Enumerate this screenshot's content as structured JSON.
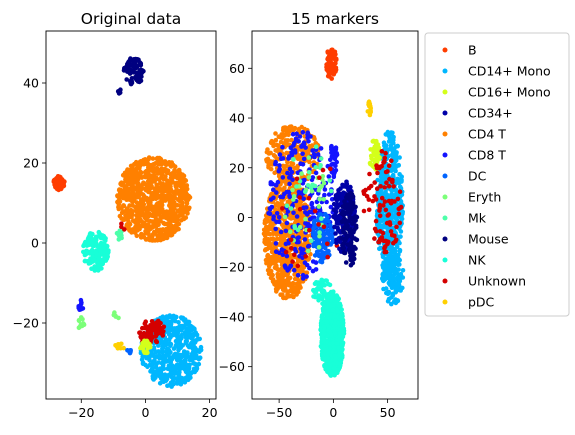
{
  "chart_data": [
    {
      "type": "scatter",
      "title": "Original data",
      "xlabel": "",
      "ylabel": "",
      "xlim": [
        -31,
        22
      ],
      "ylim": [
        -39,
        53
      ],
      "xticks": [
        -20,
        0,
        20
      ],
      "yticks": [
        -20,
        0,
        20,
        40
      ],
      "grid": false,
      "clusters": [
        {
          "category": "Mouse",
          "cx": -3.5,
          "cy": 43,
          "rx": 3.2,
          "ry": 3.5,
          "n": 90
        },
        {
          "category": "Mouse",
          "cx": -8,
          "cy": 38,
          "rx": 0.6,
          "ry": 0.8,
          "n": 6
        },
        {
          "category": "B",
          "cx": -27,
          "cy": 15,
          "rx": 1.8,
          "ry": 1.8,
          "n": 50
        },
        {
          "category": "CD4 T",
          "cx": 2.5,
          "cy": 11,
          "rx": 11.5,
          "ry": 10.5,
          "n": 900
        },
        {
          "category": "NK",
          "cx": -15.5,
          "cy": -2,
          "rx": 4,
          "ry": 5,
          "n": 150
        },
        {
          "category": "Mk",
          "cx": -8,
          "cy": 2,
          "rx": 1,
          "ry": 1.5,
          "n": 8
        },
        {
          "category": "Unknown",
          "cx": -7,
          "cy": 4,
          "rx": 1,
          "ry": 1,
          "n": 3
        },
        {
          "category": "CD14+ Mono",
          "cx": 8,
          "cy": -27,
          "rx": 9.5,
          "ry": 9,
          "n": 500
        },
        {
          "category": "Unknown",
          "cx": 2,
          "cy": -22,
          "rx": 4,
          "ry": 3,
          "n": 60
        },
        {
          "category": "Unknown",
          "cx": 0,
          "cy": -24,
          "rx": 1.5,
          "ry": 1,
          "n": 15
        },
        {
          "category": "CD16+ Mono",
          "cx": 0,
          "cy": -26,
          "rx": 1.6,
          "ry": 1.6,
          "n": 25
        },
        {
          "category": "CD8 T",
          "cx": -20,
          "cy": -15.5,
          "rx": 1,
          "ry": 1.5,
          "n": 12
        },
        {
          "category": "Eryth",
          "cx": -20,
          "cy": -20,
          "rx": 1,
          "ry": 2,
          "n": 12
        },
        {
          "category": "Eryth",
          "cx": -9,
          "cy": -18,
          "rx": 1,
          "ry": 1,
          "n": 5
        },
        {
          "category": "pDC",
          "cx": -8,
          "cy": -26,
          "rx": 1.5,
          "ry": 1,
          "n": 8
        },
        {
          "category": "DC",
          "cx": -5,
          "cy": -27,
          "rx": 1,
          "ry": 1,
          "n": 6
        }
      ]
    },
    {
      "type": "scatter",
      "title": "15 markers",
      "xlabel": "",
      "ylabel": "",
      "xlim": [
        -75,
        78
      ],
      "ylim": [
        -73,
        75
      ],
      "xticks": [
        -50,
        0,
        50
      ],
      "yticks": [
        -60,
        -40,
        -20,
        0,
        20,
        40,
        60
      ],
      "grid": false,
      "clusters": [
        {
          "category": "B",
          "cx": -2,
          "cy": 62,
          "rx": 5,
          "ry": 6.5,
          "n": 80
        },
        {
          "category": "CD4 T",
          "cx": -37,
          "cy": 25,
          "rx": 25,
          "ry": 12,
          "n": 250
        },
        {
          "category": "CD4 T",
          "cx": -42,
          "cy": -8,
          "rx": 22,
          "ry": 25,
          "n": 700
        },
        {
          "category": "CD8 T",
          "cx": -30,
          "cy": 5,
          "rx": 30,
          "ry": 30,
          "n": 250
        },
        {
          "category": "CD8 T",
          "cx": 0,
          "cy": 22,
          "rx": 4,
          "ry": 8,
          "n": 30
        },
        {
          "category": "DC",
          "cx": -10,
          "cy": -8,
          "rx": 10,
          "ry": 10,
          "n": 120
        },
        {
          "category": "Eryth",
          "cx": -25,
          "cy": 5,
          "rx": 25,
          "ry": 20,
          "n": 30
        },
        {
          "category": "Mk",
          "cx": -20,
          "cy": 10,
          "rx": 25,
          "ry": 20,
          "n": 25
        },
        {
          "category": "Unknown",
          "cx": -20,
          "cy": 0,
          "rx": 30,
          "ry": 25,
          "n": 25
        },
        {
          "category": "CD34+",
          "cx": 10,
          "cy": 0,
          "rx": 10,
          "ry": 15,
          "n": 180
        },
        {
          "category": "Mouse",
          "cx": 15,
          "cy": -5,
          "rx": 8,
          "ry": 15,
          "n": 120
        },
        {
          "category": "CD14+ Mono",
          "cx": 52,
          "cy": 5,
          "rx": 12,
          "ry": 30,
          "n": 500
        },
        {
          "category": "CD14+ Mono",
          "cx": 55,
          "cy": -25,
          "rx": 10,
          "ry": 10,
          "n": 120
        },
        {
          "category": "CD16+ Mono",
          "cx": 38,
          "cy": 25,
          "rx": 5,
          "ry": 6,
          "n": 40
        },
        {
          "category": "Unknown",
          "cx": 45,
          "cy": 5,
          "rx": 18,
          "ry": 22,
          "n": 90
        },
        {
          "category": "pDC",
          "cx": 33,
          "cy": 44,
          "rx": 2,
          "ry": 3,
          "n": 15
        },
        {
          "category": "NK",
          "cx": -1,
          "cy": -47,
          "rx": 11,
          "ry": 17,
          "n": 700
        },
        {
          "category": "NK",
          "cx": -10,
          "cy": -30,
          "rx": 10,
          "ry": 5,
          "n": 60
        }
      ]
    }
  ],
  "legend": {
    "placement": "right",
    "entries": [
      "B",
      "CD14+ Mono",
      "CD16+ Mono",
      "CD34+",
      "CD4 T",
      "CD8 T",
      "DC",
      "Eryth",
      "Mk",
      "Mouse",
      "NK",
      "Unknown",
      "pDC"
    ]
  },
  "colors": {
    "B": "#ff3d00",
    "CD14+ Mono": "#00b7ff",
    "CD16+ Mono": "#d4ff1a",
    "CD34+": "#0000a8",
    "CD4 T": "#ff8000",
    "CD8 T": "#1414ff",
    "DC": "#0064ff",
    "Eryth": "#7cff79",
    "Mk": "#4dffaa",
    "Mouse": "#000080",
    "NK": "#18ffd8",
    "Unknown": "#d40000",
    "pDC": "#ffd000"
  }
}
